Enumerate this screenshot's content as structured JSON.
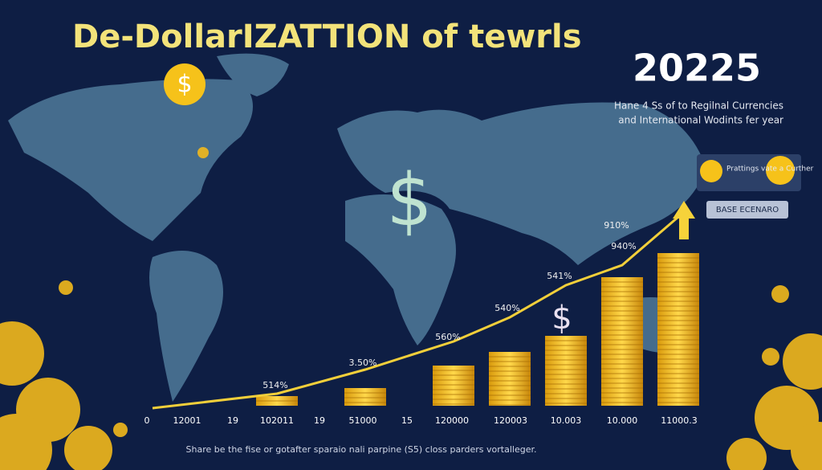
{
  "header": {
    "title": "De-DollarIZATTION of tewrls",
    "year": "20225",
    "subtitle": [
      "Hane 4 Ss of to Regilnal Currencies",
      "and International Wodints fer year"
    ]
  },
  "panel": {
    "text": "Prattings vate a Curther",
    "button": "BASE ECENARO"
  },
  "line_labels": [
    "514%",
    "3.50%",
    "560%",
    "540%",
    "541%",
    "940%",
    "910%"
  ],
  "axis_labels": [
    "0",
    "12001",
    "19",
    "102011",
    "19",
    "51000",
    "15",
    "120000",
    "120003",
    "10.003",
    "10.000",
    "11000.3"
  ],
  "footer": "Share be the fise or gotafter sparaio nali parpine (S5) closs parders vortalleger."
}
